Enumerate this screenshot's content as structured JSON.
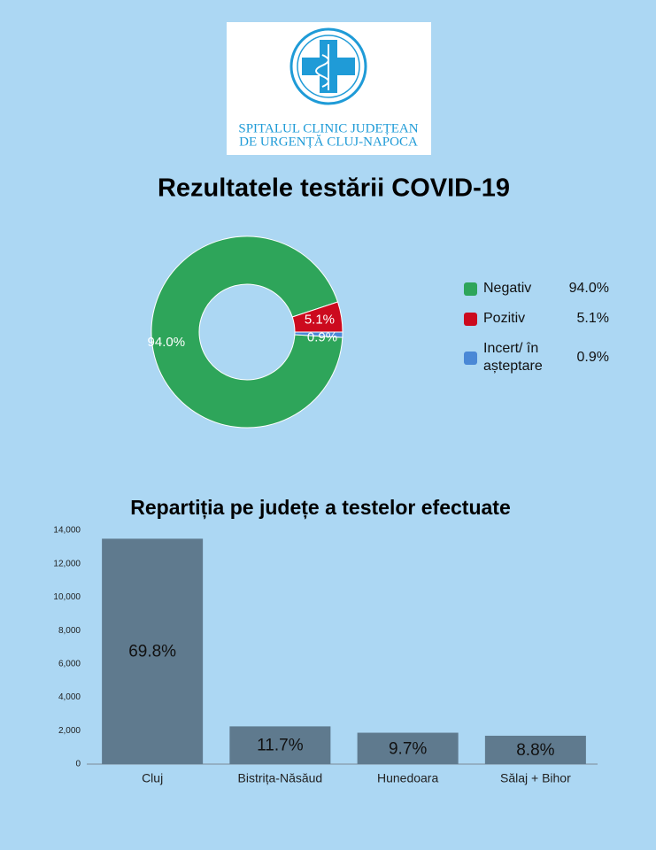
{
  "logo": {
    "lines": [
      "SPITALUL CLINIC JUDEȚEAN",
      "DE URGENȚĂ CLUJ-NAPOCA"
    ]
  },
  "chart_data": [
    {
      "type": "pie",
      "title": "Rezultatele testării COVID-19",
      "categories": [
        "Negativ",
        "Pozitiv",
        "Incert/ în așteptare"
      ],
      "values": [
        94.0,
        5.1,
        0.9
      ],
      "value_labels": [
        "94.0%",
        "5.1%",
        "0.9%"
      ],
      "colors": [
        "#2ea55a",
        "#cc0a1e",
        "#4a88d6"
      ]
    },
    {
      "type": "bar",
      "title": "Repartiția pe județe a testelor efectuate",
      "categories": [
        "Cluj",
        "Bistrița-Năsăud",
        "Hunedoara",
        "Sălaj + Bihor"
      ],
      "values": [
        13500,
        2260,
        1880,
        1700
      ],
      "share_labels": [
        "69.8%",
        "11.7%",
        "9.7%",
        "8.8%"
      ],
      "color": "#5f7a8e",
      "ylim": [
        0,
        14000
      ],
      "yticks": [
        0,
        {
          "value": 2000,
          "label": "2,000"
        },
        {
          "value": 4000,
          "label": "4,000"
        },
        {
          "value": 6000,
          "label": "6,000"
        },
        {
          "value": 8000,
          "label": "8,000"
        },
        {
          "value": 10000,
          "label": "10,000"
        },
        {
          "value": 12000,
          "label": "12,000"
        },
        {
          "value": 14000,
          "label": "14,000"
        }
      ]
    }
  ]
}
